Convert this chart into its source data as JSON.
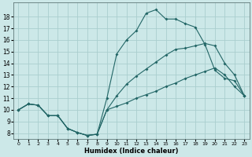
{
  "background_color": "#cce8e8",
  "grid_color": "#aacece",
  "line_color": "#226666",
  "xlim": [
    -0.5,
    23.5
  ],
  "ylim": [
    7.5,
    19.2
  ],
  "xticks": [
    0,
    1,
    2,
    3,
    4,
    5,
    6,
    7,
    8,
    9,
    10,
    11,
    12,
    13,
    14,
    15,
    16,
    17,
    18,
    19,
    20,
    21,
    22,
    23
  ],
  "yticks": [
    8,
    9,
    10,
    11,
    12,
    13,
    14,
    15,
    16,
    17,
    18
  ],
  "xlabel": "Humidex (Indice chaleur)",
  "line1_x": [
    0,
    1,
    2,
    3,
    4,
    5,
    6,
    7,
    8,
    9,
    10,
    11,
    12,
    13,
    14,
    15,
    16,
    17,
    18,
    19,
    20,
    21,
    22,
    23
  ],
  "line1_y": [
    10.0,
    10.5,
    10.4,
    9.5,
    9.5,
    8.4,
    8.05,
    7.8,
    7.9,
    11.0,
    14.8,
    16.0,
    16.8,
    18.3,
    18.6,
    17.8,
    17.8,
    17.4,
    17.1,
    15.6,
    13.4,
    12.7,
    12.5,
    11.2
  ],
  "line2_x": [
    0,
    1,
    2,
    3,
    4,
    5,
    6,
    7,
    8,
    9,
    10,
    11,
    12,
    13,
    14,
    15,
    16,
    17,
    18,
    19,
    20,
    21,
    22,
    23
  ],
  "line2_y": [
    10.0,
    10.5,
    10.4,
    9.5,
    9.5,
    8.4,
    8.05,
    7.8,
    7.9,
    10.0,
    11.2,
    12.2,
    12.9,
    13.5,
    14.1,
    14.7,
    15.2,
    15.3,
    15.5,
    15.7,
    15.5,
    14.0,
    13.0,
    11.2
  ],
  "line3_x": [
    0,
    1,
    2,
    3,
    4,
    5,
    6,
    7,
    8,
    9,
    10,
    11,
    12,
    13,
    14,
    15,
    16,
    17,
    18,
    19,
    20,
    21,
    22,
    23
  ],
  "line3_y": [
    10.0,
    10.5,
    10.4,
    9.5,
    9.5,
    8.4,
    8.05,
    7.8,
    7.9,
    10.0,
    10.3,
    10.6,
    11.0,
    11.3,
    11.6,
    12.0,
    12.3,
    12.7,
    13.0,
    13.3,
    13.6,
    13.0,
    12.0,
    11.2
  ]
}
